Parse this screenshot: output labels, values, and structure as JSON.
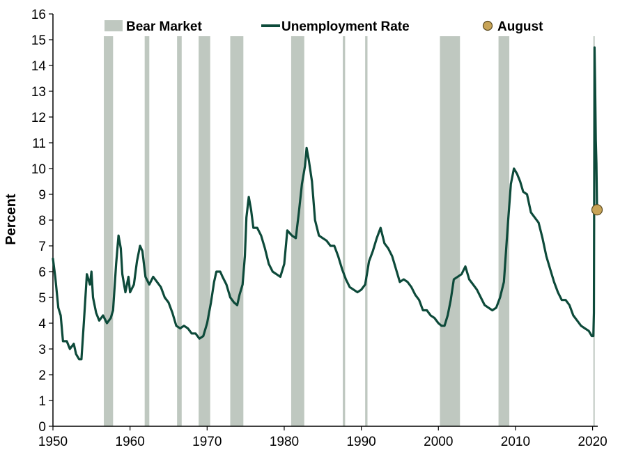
{
  "colors": {
    "line": "#0d4a3a",
    "bear_band": "#bfc8c0",
    "august_marker": "#c8a457",
    "axis": "#000000"
  },
  "legend": {
    "bear_market": "Bear Market",
    "unemployment_rate": "Unemployment Rate",
    "august": "August"
  },
  "chart_data": {
    "type": "line",
    "title": "",
    "xlabel": "",
    "ylabel": "Percent",
    "xlim": [
      1950,
      2020.67
    ],
    "ylim": [
      0,
      16
    ],
    "x_ticks": [
      1950,
      1960,
      1970,
      1980,
      1990,
      2000,
      2010,
      2020
    ],
    "y_ticks": [
      0,
      1,
      2,
      3,
      4,
      5,
      6,
      7,
      8,
      9,
      10,
      11,
      12,
      13,
      14,
      15,
      16
    ],
    "grid": false,
    "legend_position": "top",
    "bear_markets": [
      [
        1956.6,
        1957.8
      ],
      [
        1961.9,
        1962.5
      ],
      [
        1966.1,
        1966.7
      ],
      [
        1968.9,
        1970.4
      ],
      [
        1973.0,
        1974.7
      ],
      [
        1980.9,
        1982.6
      ],
      [
        1987.6,
        1987.9
      ],
      [
        1990.5,
        1990.8
      ],
      [
        2000.2,
        2002.8
      ],
      [
        2007.8,
        2009.2
      ],
      [
        2020.1,
        2020.25
      ]
    ],
    "series": [
      {
        "name": "Unemployment Rate",
        "points": [
          [
            1950.0,
            6.5
          ],
          [
            1950.3,
            5.8
          ],
          [
            1950.7,
            4.6
          ],
          [
            1951.0,
            4.3
          ],
          [
            1951.3,
            3.3
          ],
          [
            1951.8,
            3.3
          ],
          [
            1952.2,
            3.0
          ],
          [
            1952.7,
            3.2
          ],
          [
            1953.0,
            2.8
          ],
          [
            1953.4,
            2.6
          ],
          [
            1953.7,
            2.6
          ],
          [
            1954.0,
            4.0
          ],
          [
            1954.4,
            5.9
          ],
          [
            1954.8,
            5.5
          ],
          [
            1955.0,
            6.0
          ],
          [
            1955.2,
            5.0
          ],
          [
            1955.6,
            4.4
          ],
          [
            1956.0,
            4.1
          ],
          [
            1956.5,
            4.3
          ],
          [
            1957.0,
            4.0
          ],
          [
            1957.5,
            4.2
          ],
          [
            1957.8,
            4.5
          ],
          [
            1958.2,
            6.3
          ],
          [
            1958.5,
            7.4
          ],
          [
            1958.8,
            6.9
          ],
          [
            1959.0,
            5.9
          ],
          [
            1959.4,
            5.2
          ],
          [
            1959.8,
            5.8
          ],
          [
            1960.0,
            5.2
          ],
          [
            1960.5,
            5.5
          ],
          [
            1960.9,
            6.4
          ],
          [
            1961.3,
            7.0
          ],
          [
            1961.6,
            6.8
          ],
          [
            1962.0,
            5.8
          ],
          [
            1962.5,
            5.5
          ],
          [
            1963.0,
            5.8
          ],
          [
            1963.5,
            5.6
          ],
          [
            1964.0,
            5.4
          ],
          [
            1964.5,
            5.0
          ],
          [
            1965.0,
            4.8
          ],
          [
            1965.5,
            4.4
          ],
          [
            1966.0,
            3.9
          ],
          [
            1966.5,
            3.8
          ],
          [
            1967.0,
            3.9
          ],
          [
            1967.5,
            3.8
          ],
          [
            1968.0,
            3.6
          ],
          [
            1968.5,
            3.6
          ],
          [
            1969.0,
            3.4
          ],
          [
            1969.5,
            3.5
          ],
          [
            1970.0,
            4.0
          ],
          [
            1970.5,
            4.8
          ],
          [
            1970.9,
            5.6
          ],
          [
            1971.2,
            6.0
          ],
          [
            1971.7,
            6.0
          ],
          [
            1972.0,
            5.8
          ],
          [
            1972.5,
            5.5
          ],
          [
            1973.0,
            5.0
          ],
          [
            1973.5,
            4.8
          ],
          [
            1973.9,
            4.7
          ],
          [
            1974.2,
            5.1
          ],
          [
            1974.6,
            5.5
          ],
          [
            1974.9,
            6.6
          ],
          [
            1975.1,
            8.1
          ],
          [
            1975.4,
            8.9
          ],
          [
            1975.7,
            8.4
          ],
          [
            1976.0,
            7.7
          ],
          [
            1976.5,
            7.7
          ],
          [
            1977.0,
            7.4
          ],
          [
            1977.5,
            6.9
          ],
          [
            1978.0,
            6.3
          ],
          [
            1978.5,
            6.0
          ],
          [
            1979.0,
            5.9
          ],
          [
            1979.5,
            5.8
          ],
          [
            1980.0,
            6.3
          ],
          [
            1980.4,
            7.6
          ],
          [
            1980.7,
            7.5
          ],
          [
            1981.0,
            7.4
          ],
          [
            1981.5,
            7.3
          ],
          [
            1981.9,
            8.3
          ],
          [
            1982.3,
            9.4
          ],
          [
            1982.7,
            10.1
          ],
          [
            1982.9,
            10.8
          ],
          [
            1983.2,
            10.3
          ],
          [
            1983.6,
            9.5
          ],
          [
            1984.0,
            8.0
          ],
          [
            1984.5,
            7.4
          ],
          [
            1985.0,
            7.3
          ],
          [
            1985.5,
            7.2
          ],
          [
            1986.0,
            7.0
          ],
          [
            1986.5,
            7.0
          ],
          [
            1987.0,
            6.6
          ],
          [
            1987.5,
            6.1
          ],
          [
            1988.0,
            5.7
          ],
          [
            1988.5,
            5.4
          ],
          [
            1989.0,
            5.3
          ],
          [
            1989.5,
            5.2
          ],
          [
            1990.0,
            5.3
          ],
          [
            1990.5,
            5.5
          ],
          [
            1991.0,
            6.4
          ],
          [
            1991.5,
            6.8
          ],
          [
            1992.0,
            7.3
          ],
          [
            1992.5,
            7.7
          ],
          [
            1993.0,
            7.1
          ],
          [
            1993.5,
            6.9
          ],
          [
            1994.0,
            6.6
          ],
          [
            1994.5,
            6.1
          ],
          [
            1995.0,
            5.6
          ],
          [
            1995.5,
            5.7
          ],
          [
            1996.0,
            5.6
          ],
          [
            1996.5,
            5.4
          ],
          [
            1997.0,
            5.1
          ],
          [
            1997.5,
            4.9
          ],
          [
            1998.0,
            4.5
          ],
          [
            1998.5,
            4.5
          ],
          [
            1999.0,
            4.3
          ],
          [
            1999.5,
            4.2
          ],
          [
            2000.0,
            4.0
          ],
          [
            2000.4,
            3.9
          ],
          [
            2000.8,
            3.9
          ],
          [
            2001.2,
            4.3
          ],
          [
            2001.6,
            4.9
          ],
          [
            2002.0,
            5.7
          ],
          [
            2002.5,
            5.8
          ],
          [
            2003.0,
            5.9
          ],
          [
            2003.5,
            6.2
          ],
          [
            2004.0,
            5.7
          ],
          [
            2004.5,
            5.5
          ],
          [
            2005.0,
            5.3
          ],
          [
            2005.5,
            5.0
          ],
          [
            2006.0,
            4.7
          ],
          [
            2006.5,
            4.6
          ],
          [
            2007.0,
            4.5
          ],
          [
            2007.5,
            4.6
          ],
          [
            2008.0,
            5.0
          ],
          [
            2008.5,
            5.6
          ],
          [
            2009.0,
            7.8
          ],
          [
            2009.4,
            9.4
          ],
          [
            2009.8,
            10.0
          ],
          [
            2010.2,
            9.8
          ],
          [
            2010.6,
            9.5
          ],
          [
            2011.0,
            9.1
          ],
          [
            2011.5,
            9.0
          ],
          [
            2012.0,
            8.3
          ],
          [
            2012.5,
            8.1
          ],
          [
            2013.0,
            7.9
          ],
          [
            2013.5,
            7.3
          ],
          [
            2014.0,
            6.6
          ],
          [
            2014.5,
            6.1
          ],
          [
            2015.0,
            5.6
          ],
          [
            2015.5,
            5.2
          ],
          [
            2016.0,
            4.9
          ],
          [
            2016.5,
            4.9
          ],
          [
            2017.0,
            4.7
          ],
          [
            2017.5,
            4.3
          ],
          [
            2018.0,
            4.1
          ],
          [
            2018.5,
            3.9
          ],
          [
            2019.0,
            3.8
          ],
          [
            2019.5,
            3.7
          ],
          [
            2019.9,
            3.5
          ],
          [
            2020.1,
            3.5
          ],
          [
            2020.17,
            4.4
          ],
          [
            2020.25,
            14.7
          ],
          [
            2020.33,
            13.3
          ],
          [
            2020.42,
            11.1
          ],
          [
            2020.5,
            10.2
          ],
          [
            2020.58,
            8.4
          ]
        ]
      }
    ],
    "annotations": [
      {
        "label": "August",
        "x": 2020.58,
        "y": 8.4
      }
    ]
  }
}
